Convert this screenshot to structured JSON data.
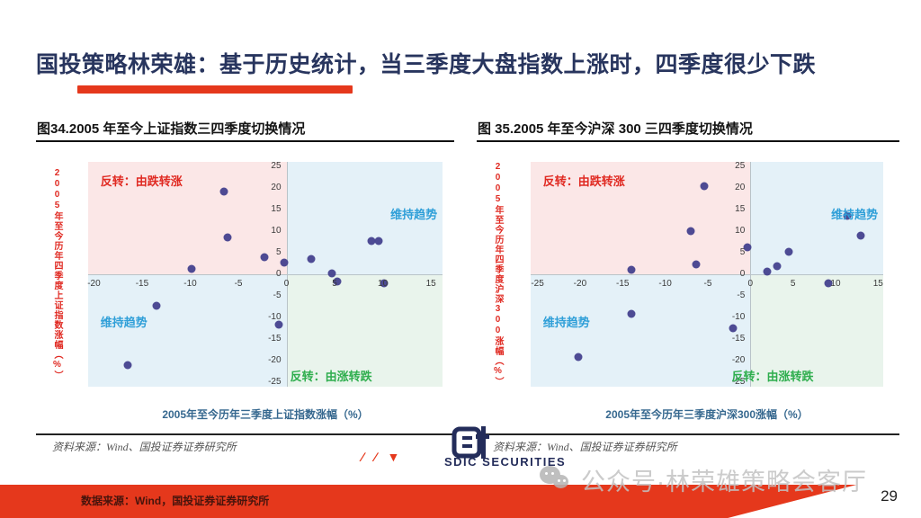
{
  "slide": {
    "title": "国投策略林荣雄：基于历史统计，当三季度大盘指数上涨时，四季度很少下跌",
    "page_number": "29"
  },
  "footer": {
    "data_source": "数据来源：Wind，国投证券证券研究所"
  },
  "watermark": {
    "icon": "wechat-icon",
    "text": "公众号·林荣雄策略会客厅"
  },
  "logo": {
    "marks": "∕ ∕ ▼",
    "name": "SDIC SECURITIES"
  },
  "colors": {
    "accent_red": "#e5381c",
    "title_navy": "#28355e",
    "dot_indigo": "#44418e",
    "quadrant_pink": "#fbe7e7",
    "quadrant_blue": "#e4f1f8",
    "quadrant_green": "#e9f4ec",
    "annotation_red": "#e02a22",
    "annotation_blue": "#2f9fd8",
    "annotation_green": "#2fae4e"
  },
  "chart_data": [
    {
      "type": "scatter",
      "title": "图34.2005 年至今上证指数三四季度切换情况",
      "xlabel": "2005年至今历年三季度上证指数涨幅（%）",
      "ylabel": "2005年至今历年四季度上证指数涨幅（%）",
      "source": "资料来源：Wind、国投证券证券研究所",
      "grid": false,
      "legend": "none",
      "xticks": [
        -20,
        -15,
        -10,
        -5,
        0,
        5,
        10,
        15
      ],
      "yticks": [
        25,
        20,
        15,
        10,
        5,
        0,
        -5,
        -10,
        -15,
        -20,
        -25
      ],
      "xrange": [
        -20.6,
        16.2
      ],
      "yrange": [
        -26,
        26
      ],
      "quadrant_labels": {
        "top_left": "反转：由跌转涨",
        "top_right": "维持趋势",
        "bottom_left": "维持趋势",
        "bottom_right": "反转：由涨转跌"
      },
      "points": [
        [
          -16.5,
          -21
        ],
        [
          -13.5,
          -7.3
        ],
        [
          -9.9,
          1.3
        ],
        [
          -6.5,
          19.1
        ],
        [
          -6.1,
          8.5
        ],
        [
          -2.3,
          3.9
        ],
        [
          -0.8,
          -11.7
        ],
        [
          -0.2,
          2.8
        ],
        [
          2.6,
          3.5
        ],
        [
          4.7,
          0.3
        ],
        [
          5.3,
          -1.7
        ],
        [
          8.8,
          7.8
        ],
        [
          9.6,
          7.7
        ],
        [
          10.1,
          -2.1
        ]
      ]
    },
    {
      "type": "scatter",
      "title": "图 35.2005 年至今沪深 300 三四季度切换情况",
      "xlabel": "2005年至今历年三季度沪深300涨幅（%）",
      "ylabel": "2005年至今历年四季度沪深300涨幅（%）",
      "source": "资料来源：Wind、国投证券证券研究所",
      "grid": false,
      "legend": "none",
      "xticks": [
        -25,
        -20,
        -15,
        -10,
        -5,
        0,
        5,
        10,
        15
      ],
      "yticks": [
        25,
        20,
        15,
        10,
        5,
        0,
        -5,
        -10,
        -15,
        -20,
        -25
      ],
      "xrange": [
        -25.8,
        15.6
      ],
      "yrange": [
        -26,
        26
      ],
      "quadrant_labels": {
        "top_left": "反转：由跌转涨",
        "top_right": "维持趋势",
        "bottom_left": "维持趋势",
        "bottom_right": "反转：由涨转跌"
      },
      "points": [
        [
          -20.2,
          -19.2
        ],
        [
          -14,
          -9.2
        ],
        [
          -14,
          1.1
        ],
        [
          -7,
          10
        ],
        [
          -6.4,
          2.2
        ],
        [
          -5.4,
          20.3
        ],
        [
          -2,
          -12.5
        ],
        [
          -0.4,
          6.2
        ],
        [
          2,
          0.7
        ],
        [
          3.1,
          1.9
        ],
        [
          4.5,
          5.1
        ],
        [
          9.2,
          -2.1
        ],
        [
          11.4,
          13.5
        ],
        [
          13,
          9
        ]
      ]
    }
  ]
}
